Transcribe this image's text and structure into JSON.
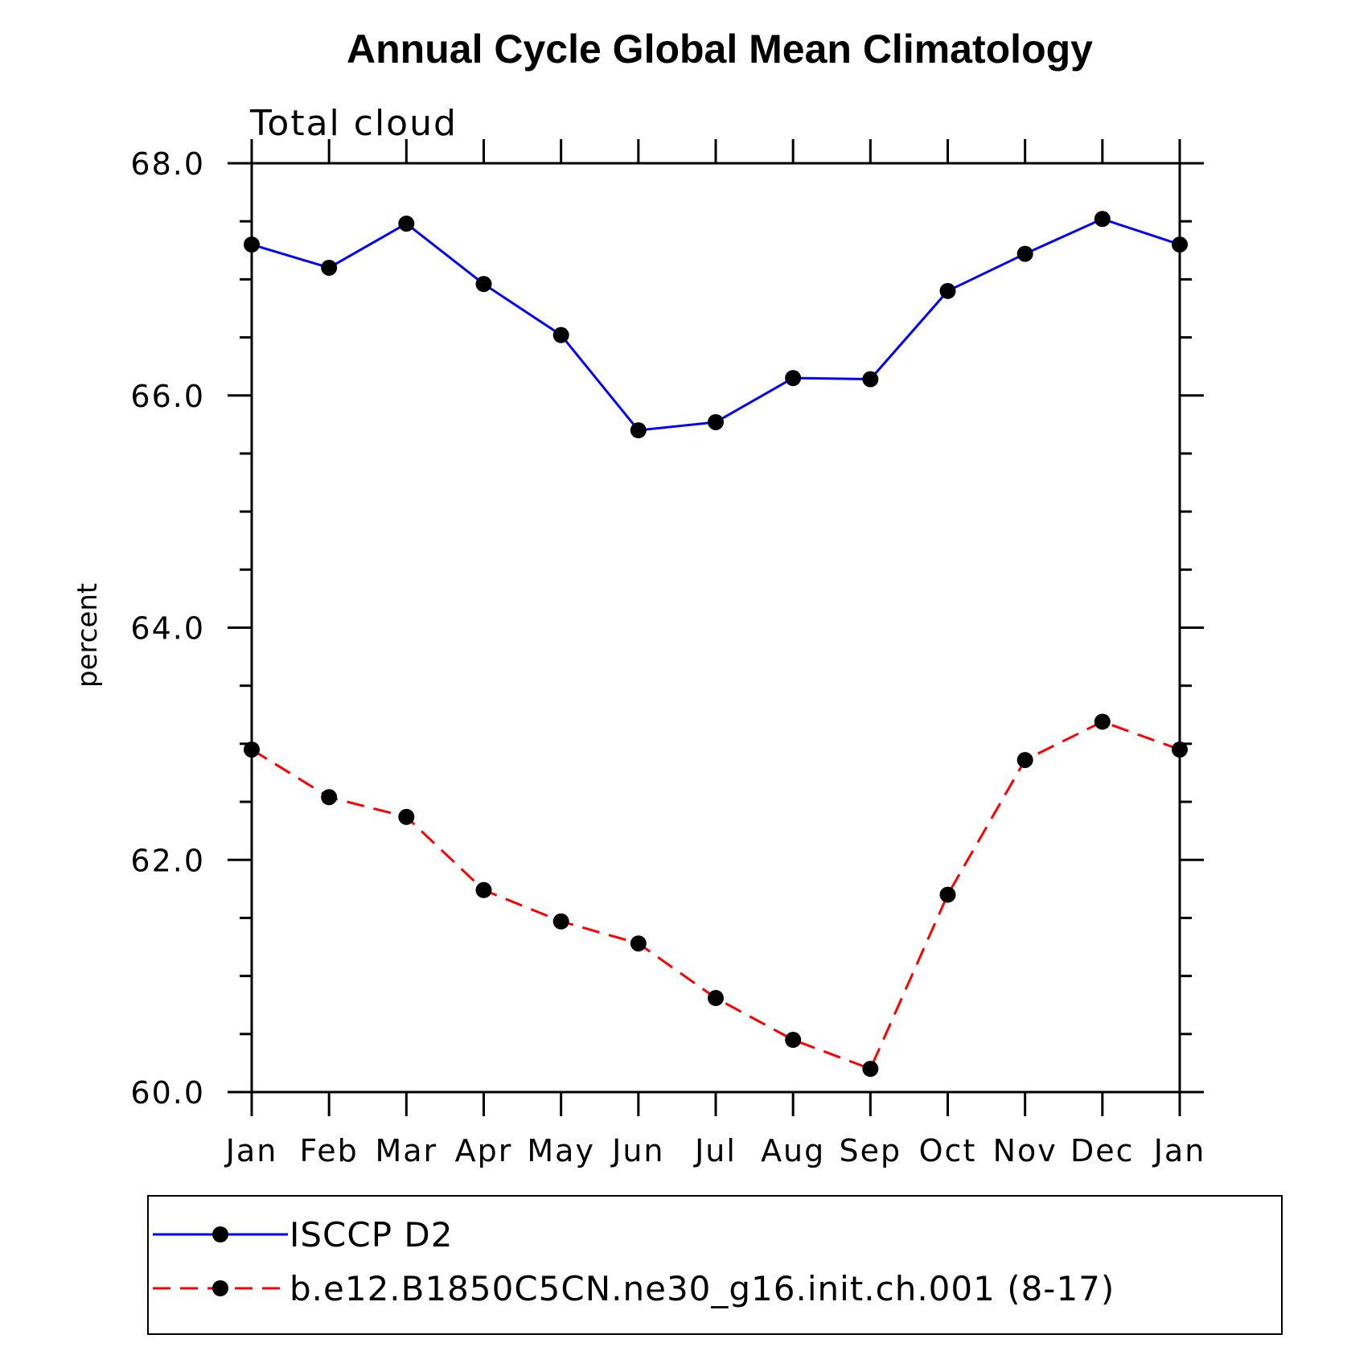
{
  "chart_data": {
    "type": "line",
    "title": "Annual Cycle Global Mean Climatology",
    "subtitle": "Total cloud",
    "xlabel": "",
    "ylabel": "percent",
    "categories": [
      "Jan",
      "Feb",
      "Mar",
      "Apr",
      "May",
      "Jun",
      "Jul",
      "Aug",
      "Sep",
      "Oct",
      "Nov",
      "Dec",
      "Jan"
    ],
    "ylim": [
      60.0,
      68.0
    ],
    "y_major_ticks": [
      60.0,
      62.0,
      64.0,
      66.0,
      68.0
    ],
    "y_tick_labels": [
      "60.0",
      "62.0",
      "64.0",
      "66.0",
      "68.0"
    ],
    "y_minor_step": 0.5,
    "grid": false,
    "legend_position": "bottom",
    "series": [
      {
        "name": "ISCCP D2",
        "color": "#0000ff",
        "line_style": "solid",
        "marker": "filled-circle",
        "values": [
          67.3,
          67.1,
          67.48,
          66.96,
          66.52,
          65.7,
          65.77,
          66.15,
          66.14,
          66.9,
          67.22,
          67.52,
          67.3
        ]
      },
      {
        "name": "b.e12.B1850C5CN.ne30_g16.init.ch.001 (8-17)",
        "color": "#ff0000",
        "line_style": "dashed",
        "marker": "filled-circle",
        "values": [
          62.95,
          62.54,
          62.37,
          61.74,
          61.47,
          61.28,
          60.81,
          60.45,
          60.2,
          61.7,
          62.86,
          63.19,
          62.95
        ]
      }
    ]
  }
}
